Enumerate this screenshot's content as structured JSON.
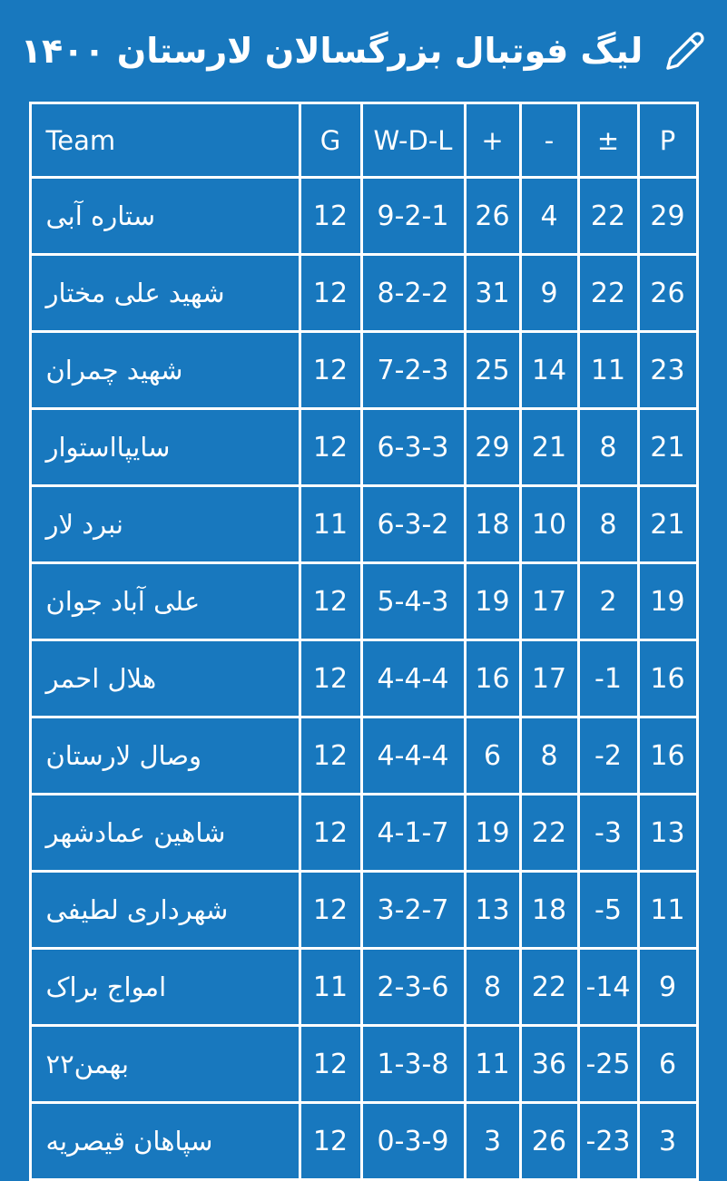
{
  "page": {
    "background_color": "#1878BE",
    "text_color": "#FFFFFF",
    "border_color": "#FFFFFF"
  },
  "header": {
    "title": "لیگ فوتبال بزرگسالان لارستان ۱۴۰۰",
    "edit_icon": "pencil-icon"
  },
  "table": {
    "columns": [
      {
        "key": "team",
        "label": "Team"
      },
      {
        "key": "games",
        "label": "G"
      },
      {
        "key": "wdl",
        "label": "W-D-L"
      },
      {
        "key": "goals-for",
        "label": "+"
      },
      {
        "key": "goals-against",
        "label": "-"
      },
      {
        "key": "goal-diff",
        "label": "±"
      },
      {
        "key": "points",
        "label": "P"
      }
    ],
    "rows": [
      [
        "ستاره آبی",
        "12",
        "9-2-1",
        "26",
        "4",
        "22",
        "29"
      ],
      [
        "شهید علی مختار",
        "12",
        "8-2-2",
        "31",
        "9",
        "22",
        "26"
      ],
      [
        "شهید چمران",
        "12",
        "7-2-3",
        "25",
        "14",
        "11",
        "23"
      ],
      [
        "سایپااستوار",
        "12",
        "6-3-3",
        "29",
        "21",
        "8",
        "21"
      ],
      [
        "نبرد لار",
        "11",
        "6-3-2",
        "18",
        "10",
        "8",
        "21"
      ],
      [
        "علی آباد جوان",
        "12",
        "5-4-3",
        "19",
        "17",
        "2",
        "19"
      ],
      [
        "هلال احمر",
        "12",
        "4-4-4",
        "16",
        "17",
        "-1",
        "16"
      ],
      [
        "وصال لارستان",
        "12",
        "4-4-4",
        "6",
        "8",
        "-2",
        "16"
      ],
      [
        "شاهین عمادشهر",
        "12",
        "4-1-7",
        "19",
        "22",
        "-3",
        "13"
      ],
      [
        "شهرداری لطیفی",
        "12",
        "3-2-7",
        "13",
        "18",
        "-5",
        "11"
      ],
      [
        "امواج براک",
        "11",
        "2-3-6",
        "8",
        "22",
        "-14",
        "9"
      ],
      [
        "۲۲بهمن",
        "12",
        "1-3-8",
        "11",
        "36",
        "-25",
        "6"
      ],
      [
        "سپاهان قیصریه",
        "12",
        "0-3-9",
        "3",
        "26",
        "-23",
        "3"
      ]
    ]
  }
}
